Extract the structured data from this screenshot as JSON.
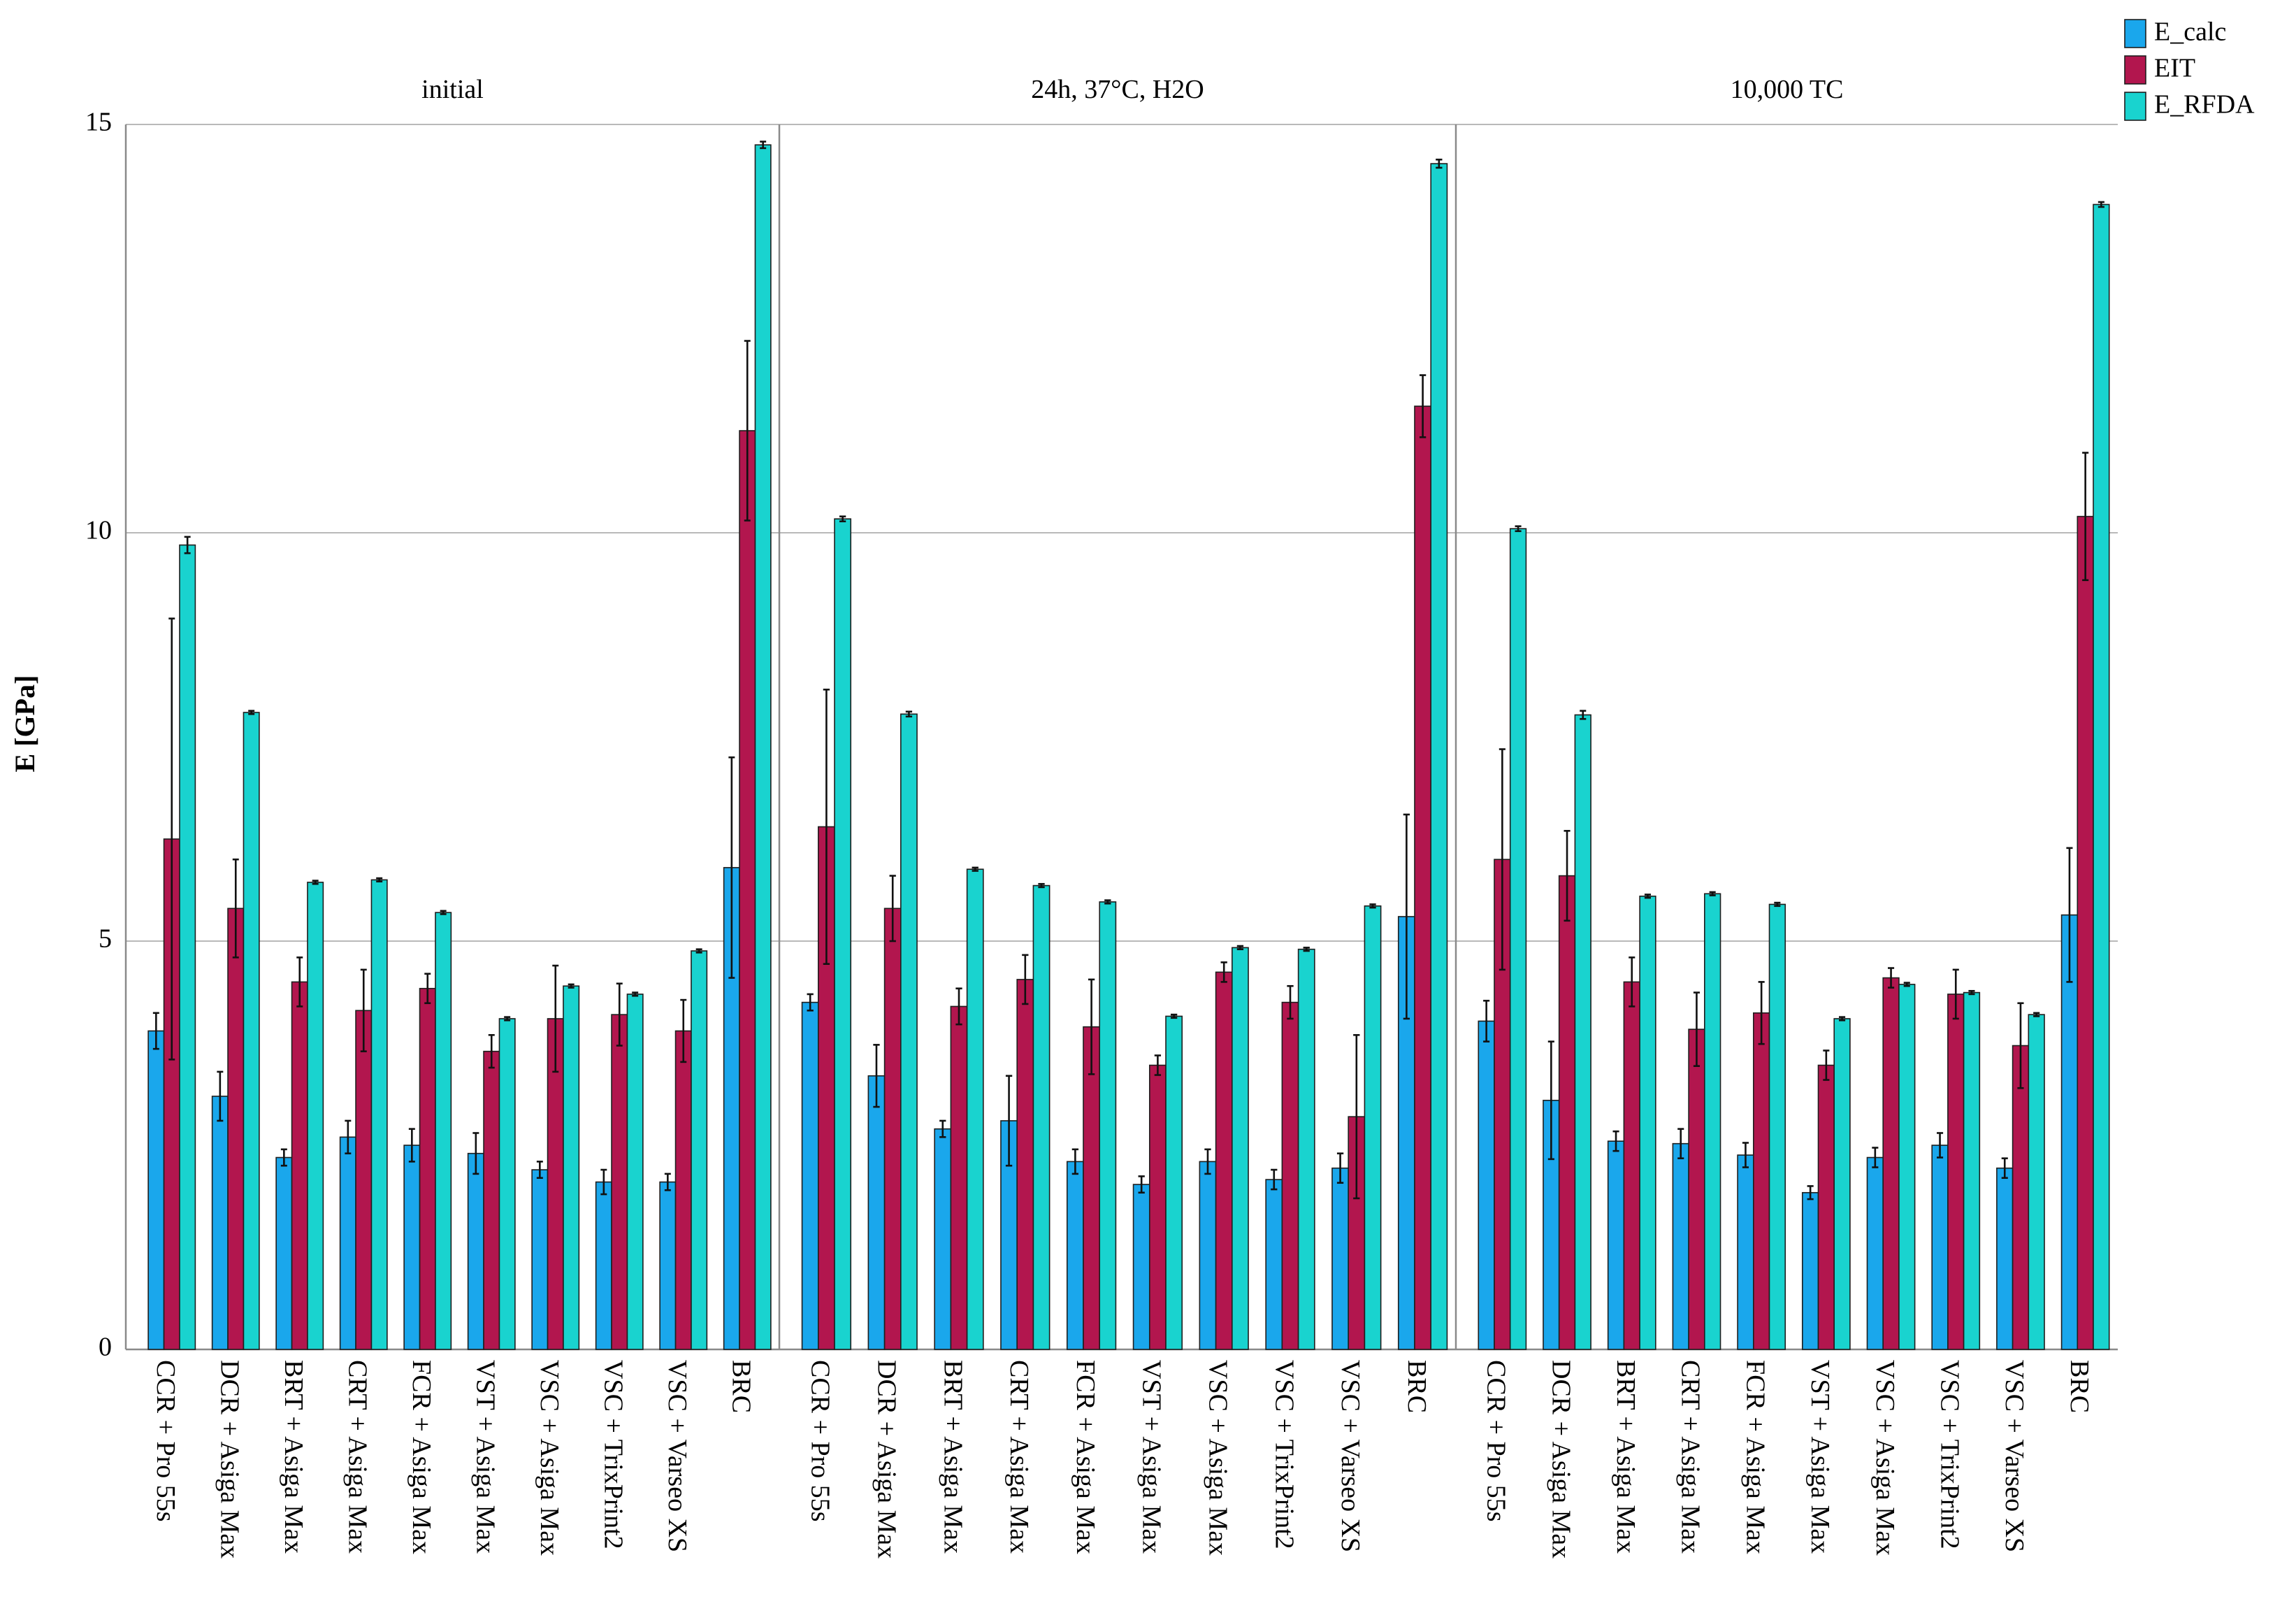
{
  "chart_data": {
    "type": "bar",
    "title": "",
    "ylabel": "E [GPa]",
    "xlabel": "",
    "ylim": [
      0,
      15
    ],
    "yticks": [
      0,
      5,
      10,
      15
    ],
    "grid": true,
    "legend_position": "top-right",
    "categories": [
      "CCR + Pro 55s",
      "DCR + Asiga Max",
      "BRT + Asiga Max",
      "CRT + Asiga Max",
      "FCR + Asiga Max",
      "VST + Asiga Max",
      "VSC + Asiga Max",
      "VSC + TrixPrint2",
      "VSC + Varseo XS",
      "BRC"
    ],
    "series_names": [
      "E_calc",
      "EIT",
      "E_RFDA"
    ],
    "colors": {
      "E_calc": "#1AA7EC",
      "EIT": "#B2164E",
      "E_RFDA": "#19D3CF"
    },
    "panels": [
      {
        "title": "initial",
        "series": [
          {
            "name": "E_calc",
            "values": [
              3.9,
              3.1,
              2.35,
              2.6,
              2.5,
              2.4,
              2.2,
              2.05,
              2.05,
              5.9
            ],
            "errors": [
              0.22,
              0.3,
              0.1,
              0.2,
              0.2,
              0.25,
              0.1,
              0.15,
              0.1,
              1.35
            ]
          },
          {
            "name": "EIT",
            "values": [
              6.25,
              5.4,
              4.5,
              4.15,
              4.42,
              3.65,
              4.05,
              4.1,
              3.9,
              11.25
            ],
            "errors": [
              2.7,
              0.6,
              0.3,
              0.5,
              0.18,
              0.2,
              0.65,
              0.38,
              0.38,
              1.1
            ]
          },
          {
            "name": "E_RFDA",
            "values": [
              9.85,
              7.8,
              5.72,
              5.75,
              5.35,
              4.05,
              4.45,
              4.35,
              4.88,
              14.75
            ],
            "errors": [
              0.1,
              0.02,
              0.02,
              0.02,
              0.02,
              0.02,
              0.02,
              0.02,
              0.02,
              0.04
            ]
          }
        ]
      },
      {
        "title": "24h, 37°C, H2O",
        "series": [
          {
            "name": "E_calc",
            "values": [
              4.25,
              3.35,
              2.7,
              2.8,
              2.3,
              2.02,
              2.3,
              2.08,
              2.22,
              5.3
            ],
            "errors": [
              0.1,
              0.38,
              0.1,
              0.55,
              0.15,
              0.1,
              0.15,
              0.12,
              0.18,
              1.25
            ]
          },
          {
            "name": "EIT",
            "values": [
              6.4,
              5.4,
              4.2,
              4.53,
              3.95,
              3.48,
              4.62,
              4.25,
              2.85,
              11.55
            ],
            "errors": [
              1.68,
              0.4,
              0.22,
              0.3,
              0.58,
              0.12,
              0.12,
              0.2,
              1.0,
              0.38
            ]
          },
          {
            "name": "E_RFDA",
            "values": [
              10.17,
              7.78,
              5.88,
              5.68,
              5.48,
              4.08,
              4.92,
              4.9,
              5.43,
              14.52
            ],
            "errors": [
              0.03,
              0.03,
              0.02,
              0.02,
              0.02,
              0.02,
              0.02,
              0.02,
              0.02,
              0.05
            ]
          }
        ]
      },
      {
        "title": "10,000 TC",
        "series": [
          {
            "name": "E_calc",
            "values": [
              4.02,
              3.05,
              2.55,
              2.52,
              2.38,
              1.92,
              2.35,
              2.5,
              2.22,
              5.32
            ],
            "errors": [
              0.25,
              0.72,
              0.12,
              0.18,
              0.15,
              0.08,
              0.12,
              0.15,
              0.12,
              0.82
            ]
          },
          {
            "name": "EIT",
            "values": [
              6.0,
              5.8,
              4.5,
              3.92,
              4.12,
              3.48,
              4.55,
              4.35,
              3.72,
              10.2
            ],
            "errors": [
              1.35,
              0.55,
              0.3,
              0.45,
              0.38,
              0.18,
              0.12,
              0.3,
              0.52,
              0.78
            ]
          },
          {
            "name": "E_RFDA",
            "values": [
              10.05,
              7.77,
              5.55,
              5.58,
              5.45,
              4.05,
              4.47,
              4.37,
              4.1,
              14.02
            ],
            "errors": [
              0.03,
              0.05,
              0.02,
              0.02,
              0.02,
              0.02,
              0.02,
              0.02,
              0.02,
              0.03
            ]
          }
        ]
      }
    ]
  }
}
